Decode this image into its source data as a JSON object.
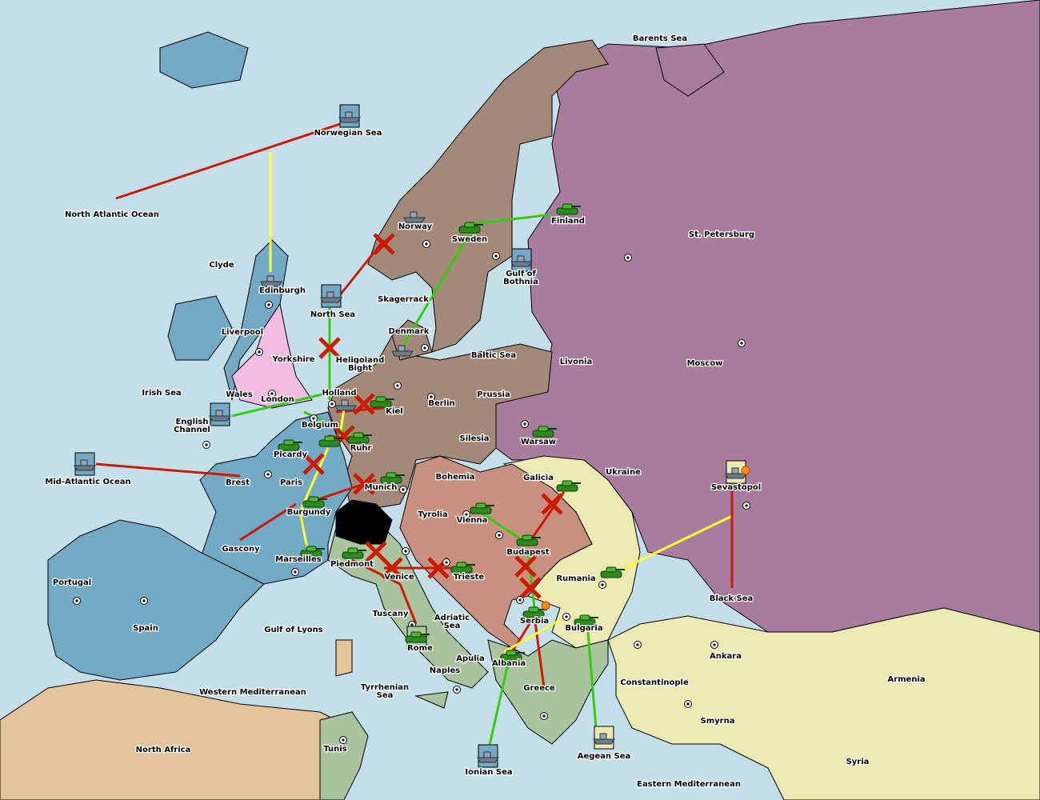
{
  "map": {
    "colors": {
      "sea": "#c5dfea",
      "england": "#f2bde0",
      "france": "#74a9c6",
      "germany": "#a38a78",
      "russia": "#a87c9c",
      "austria": "#c8907f",
      "turkey": "#ece9b2",
      "italy": "#a9c49e",
      "neutral": "#e3c49b",
      "neutral_land": "#e3e3e3",
      "switzerland": "#000000"
    },
    "territories": [
      "North Atlantic Ocean",
      "Norwegian Sea",
      "Barents Sea",
      "St. Petersburg",
      "Finland",
      "Norway",
      "Sweden",
      "Gulf of Bothnia",
      "Clyde",
      "Edinburgh",
      "North Sea",
      "Skagerrack",
      "Denmark",
      "Liverpool",
      "Yorkshire",
      "Heligoland Bight",
      "Baltic Sea",
      "Livonia",
      "Moscow",
      "Irish Sea",
      "Wales",
      "London",
      "Holland",
      "Kiel",
      "Berlin",
      "Prussia",
      "English Channel",
      "Belgium",
      "Ruhr",
      "Silesia",
      "Warsaw",
      "Picardy",
      "Ukraine",
      "Mid-Atlantic Ocean",
      "Brest",
      "Paris",
      "Munich",
      "Bohemia",
      "Galicia",
      "Sevastopol",
      "Burgundy",
      "Tyrolia",
      "Vienna",
      "Gascony",
      "Budapest",
      "Marseilles",
      "Piedmont",
      "Venice",
      "Trieste",
      "Rumania",
      "Black Sea",
      "Portugal",
      "Tuscany",
      "Adriatic Sea",
      "Serbia",
      "Bulgaria",
      "Spain",
      "Gulf of Lyons",
      "Rome",
      "Apulia",
      "Albania",
      "Naples",
      "Ankara",
      "Armenia",
      "Constantinople",
      "Western Mediterranean",
      "Tyrrhenian Sea",
      "Greece",
      "Smyrna",
      "North Africa",
      "Tunis",
      "Aegean Sea",
      "Syria",
      "Ionian Sea",
      "Eastern Mediterranean"
    ],
    "units": [
      {
        "type": "army",
        "at": "Finland"
      },
      {
        "type": "army",
        "at": "Sweden"
      },
      {
        "type": "army",
        "at": "Kiel"
      },
      {
        "type": "army",
        "at": "Ruhr"
      },
      {
        "type": "army",
        "at": "Belgium"
      },
      {
        "type": "army",
        "at": "Picardy"
      },
      {
        "type": "army",
        "at": "Munich"
      },
      {
        "type": "army",
        "at": "Burgundy"
      },
      {
        "type": "army",
        "at": "Marseilles"
      },
      {
        "type": "army",
        "at": "Piedmont"
      },
      {
        "type": "army",
        "at": "Trieste"
      },
      {
        "type": "army",
        "at": "Vienna"
      },
      {
        "type": "army",
        "at": "Galicia"
      },
      {
        "type": "army",
        "at": "Budapest"
      },
      {
        "type": "army",
        "at": "Rumania"
      },
      {
        "type": "army",
        "at": "Serbia"
      },
      {
        "type": "army",
        "at": "Bulgaria"
      },
      {
        "type": "army",
        "at": "Albania"
      },
      {
        "type": "army",
        "at": "Warsaw"
      },
      {
        "type": "fleet",
        "at": "Norwegian Sea"
      },
      {
        "type": "fleet",
        "at": "Norway"
      },
      {
        "type": "fleet",
        "at": "Edinburgh"
      },
      {
        "type": "fleet",
        "at": "North Sea"
      },
      {
        "type": "fleet",
        "at": "Gulf of Bothnia"
      },
      {
        "type": "fleet",
        "at": "Denmark"
      },
      {
        "type": "fleet",
        "at": "Holland"
      },
      {
        "type": "fleet",
        "at": "English Channel"
      },
      {
        "type": "fleet",
        "at": "Mid-Atlantic Ocean"
      },
      {
        "type": "fleet",
        "at": "Sevastopol"
      },
      {
        "type": "army",
        "at": "Rome"
      },
      {
        "type": "fleet",
        "at": "Ionian Sea"
      },
      {
        "type": "fleet",
        "at": "Aegean Sea"
      }
    ],
    "order_colors": {
      "move_failed": "#cc1a00",
      "support": "#33cc11",
      "convoy": "#ffff33"
    }
  }
}
